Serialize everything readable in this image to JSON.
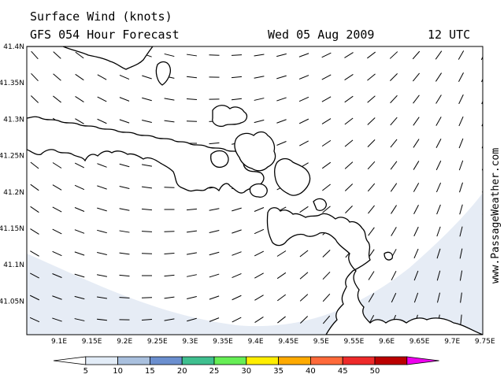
{
  "header": {
    "title_line1": "Surface Wind (knots)",
    "title_line2": "GFS 054 Hour Forecast",
    "date": "Wed 05 Aug 2009",
    "time": "12 UTC"
  },
  "credit": "www.PassageWeather.com",
  "map": {
    "lon_labels": [
      "9.1E",
      "9.15E",
      "9.2E",
      "9.25E",
      "9.3E",
      "9.35E",
      "9.4E",
      "9.45E",
      "9.5E",
      "9.55E",
      "9.6E",
      "9.65E",
      "9.7E",
      "9.75E"
    ],
    "lat_labels": [
      "41.4N",
      "41.35N",
      "41.3N",
      "41.25N",
      "41.2N",
      "41.15N",
      "41.1N",
      "41.05N"
    ],
    "land_color": "#ffffff",
    "calm_fill_color": "#e6ecf5"
  },
  "colorbar": {
    "labels": [
      "5",
      "10",
      "15",
      "20",
      "25",
      "30",
      "35",
      "40",
      "45",
      "50"
    ],
    "colors": [
      "#ffffff",
      "#e2ecf7",
      "#a9c0de",
      "#6b8fcf",
      "#3fbf8f",
      "#66ee55",
      "#ffee00",
      "#ffaa00",
      "#ff6a3a",
      "#ee2a2a",
      "#bb0000",
      "#ee00ee"
    ]
  }
}
